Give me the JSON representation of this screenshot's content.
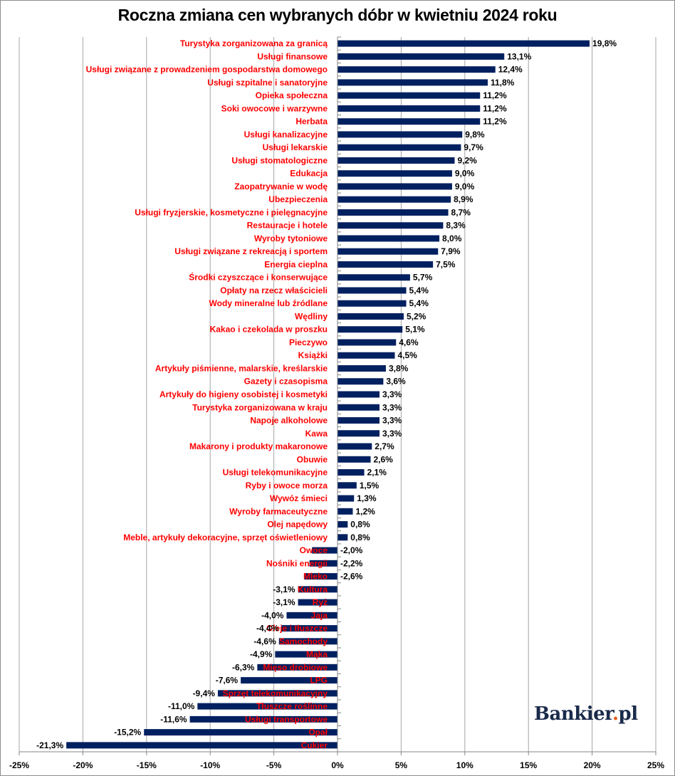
{
  "chart_data": {
    "type": "bar",
    "orientation": "horizontal",
    "title": "Roczna zmiana cen wybranych dóbr w kwietniu 2024 roku",
    "xlabel": "",
    "ylabel": "",
    "xlim": [
      -25,
      25
    ],
    "xticks": [
      -25,
      -20,
      -15,
      -10,
      -5,
      0,
      5,
      10,
      15,
      20,
      25
    ],
    "xtick_labels": [
      "-25%",
      "-20%",
      "-15%",
      "-10%",
      "-5%",
      "0%",
      "5%",
      "10%",
      "15%",
      "20%",
      "25%"
    ],
    "grid": true,
    "bar_color": "#002060",
    "label_color": "#ff0000",
    "categories": [
      "Turystyka zorganizowana za granicą",
      "Usługi finansowe",
      "Usługi związane z prowadzeniem gospodarstwa domowego",
      "Usługi szpitalne i sanatoryjne",
      "Opieka społeczna",
      "Soki owocowe i warzywne",
      "Herbata",
      "Usługi kanalizacyjne",
      "Usługi lekarskie",
      "Usługi stomatologiczne",
      "Edukacja",
      "Zaopatrywanie w wodę",
      "Ubezpieczenia",
      "Usługi fryzjerskie, kosmetyczne i pielęgnacyjne",
      "Restauracje i hotele",
      "Wyroby tytoniowe",
      "Usługi związane z rekreacją i sportem",
      "Energia cieplna",
      "Środki czyszczące i konserwujące",
      "Opłaty na rzecz właścicieli",
      "Wody mineralne lub źródlane",
      "Wędliny",
      "Kakao i czekolada w proszku",
      "Pieczywo",
      "Książki",
      "Artykuły piśmienne, malarskie, kreślarskie",
      "Gazety i czasopisma",
      "Artykuły do higieny osobistej i kosmetyki",
      "Turystyka zorganizowana w kraju",
      "Napoje alkoholowe",
      "Kawa",
      "Makarony i produkty makaronowe",
      "Obuwie",
      "Usługi telekomunikacyjne",
      "Ryby i owoce morza",
      "Wywóz śmieci",
      "Wyroby farmaceutyczne",
      "Olej napędowy",
      "Meble, artykuły dekoracyjne, sprzęt oświetleniowy",
      "Owoce",
      "Nośniki energii",
      "Mleko",
      "Kultura",
      "Ryż",
      "Jaja",
      "Oleje i tłuszcze",
      "Samochody",
      "Mąka",
      "Mięso drobiowe",
      "LPG",
      "Sprzęt telekomunikacyjny",
      "Tłuszcze roślinne",
      "Usługi transportowe",
      "Opał",
      "Cukier"
    ],
    "values": [
      19.8,
      13.1,
      12.4,
      11.8,
      11.2,
      11.2,
      11.2,
      9.8,
      9.7,
      9.2,
      9.0,
      9.0,
      8.9,
      8.7,
      8.3,
      8.0,
      7.9,
      7.5,
      5.7,
      5.4,
      5.4,
      5.2,
      5.1,
      4.6,
      4.5,
      3.8,
      3.6,
      3.3,
      3.3,
      3.3,
      3.3,
      2.7,
      2.6,
      2.1,
      1.5,
      1.3,
      1.2,
      0.8,
      0.8,
      -2.0,
      -2.2,
      -2.6,
      -3.1,
      -3.1,
      -4.0,
      -4.4,
      -4.6,
      -4.9,
      -6.3,
      -7.6,
      -9.4,
      -11.0,
      -11.6,
      -15.2,
      -21.3
    ],
    "value_labels": [
      "19,8%",
      "13,1%",
      "12,4%",
      "11,8%",
      "11,2%",
      "11,2%",
      "11,2%",
      "9,8%",
      "9,7%",
      "9,2%",
      "9,0%",
      "9,0%",
      "8,9%",
      "8,7%",
      "8,3%",
      "8,0%",
      "7,9%",
      "7,5%",
      "5,7%",
      "5,4%",
      "5,4%",
      "5,2%",
      "5,1%",
      "4,6%",
      "4,5%",
      "3,8%",
      "3,6%",
      "3,3%",
      "3,3%",
      "3,3%",
      "3,3%",
      "2,7%",
      "2,6%",
      "2,1%",
      "1,5%",
      "1,3%",
      "1,2%",
      "0,8%",
      "0,8%",
      "-2,0%",
      "-2,2%",
      "-2,6%",
      "-3,1%",
      "-3,1%",
      "-4,0%",
      "-4,4%",
      "-4,6%",
      "-4,9%",
      "-6,3%",
      "-7,6%",
      "-9,4%",
      "-11,0%",
      "-11,6%",
      "-15,2%",
      "-21,3%"
    ]
  },
  "watermark": {
    "brand": "Bankier",
    "dot": ".",
    "suffix": "pl"
  }
}
